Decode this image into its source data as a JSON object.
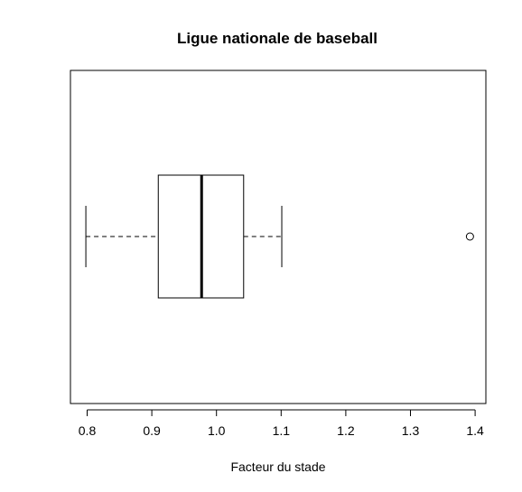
{
  "chart_data": {
    "type": "boxplot",
    "orientation": "horizontal",
    "title": "Ligue nationale de baseball",
    "xlabel": "Facteur du stade",
    "ylabel": "",
    "xlim": [
      0.775,
      1.41
    ],
    "ticks": [
      0.8,
      0.9,
      1.0,
      1.1,
      1.2,
      1.3,
      1.4
    ],
    "tick_labels": [
      "0.8",
      "0.9",
      "1.0",
      "1.1",
      "1.2",
      "1.3",
      "1.4"
    ],
    "grid": false,
    "box": {
      "whisker_low": 0.798,
      "q1": 0.91,
      "median": 0.977,
      "q3": 1.042,
      "whisker_high": 1.101,
      "outliers": [
        1.392
      ]
    }
  }
}
